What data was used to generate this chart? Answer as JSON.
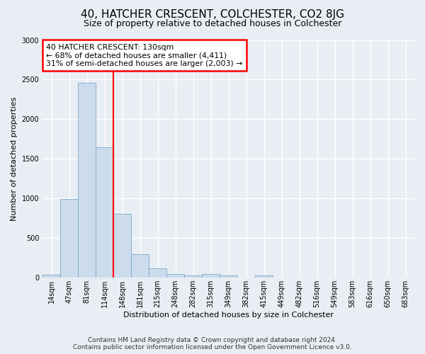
{
  "title": "40, HATCHER CRESCENT, COLCHESTER, CO2 8JG",
  "subtitle": "Size of property relative to detached houses in Colchester",
  "xlabel": "Distribution of detached houses by size in Colchester",
  "ylabel": "Number of detached properties",
  "footer_line1": "Contains HM Land Registry data © Crown copyright and database right 2024.",
  "footer_line2": "Contains public sector information licensed under the Open Government Licence v3.0.",
  "bar_labels": [
    "14sqm",
    "47sqm",
    "81sqm",
    "114sqm",
    "148sqm",
    "181sqm",
    "215sqm",
    "248sqm",
    "282sqm",
    "315sqm",
    "349sqm",
    "382sqm",
    "415sqm",
    "449sqm",
    "482sqm",
    "516sqm",
    "549sqm",
    "583sqm",
    "616sqm",
    "650sqm",
    "683sqm"
  ],
  "bar_values": [
    40,
    990,
    2460,
    1650,
    810,
    295,
    120,
    45,
    30,
    45,
    25,
    0,
    30,
    0,
    0,
    0,
    0,
    0,
    0,
    0,
    0
  ],
  "bar_color": "#ccdcec",
  "bar_edgecolor": "#7aaac8",
  "annotation_text": "40 HATCHER CRESCENT: 130sqm\n← 68% of detached houses are smaller (4,411)\n31% of semi-detached houses are larger (2,003) →",
  "annotation_box_color": "white",
  "annotation_box_edgecolor": "red",
  "vline_color": "red",
  "vline_x_index": 3.48,
  "ylim": [
    0,
    3000
  ],
  "yticks": [
    0,
    500,
    1000,
    1500,
    2000,
    2500,
    3000
  ],
  "background_color": "#e8eef4",
  "grid_color": "white",
  "title_fontsize": 11,
  "subtitle_fontsize": 9,
  "ylabel_fontsize": 8,
  "xlabel_fontsize": 8,
  "tick_fontsize": 7,
  "footer_fontsize": 6.5
}
